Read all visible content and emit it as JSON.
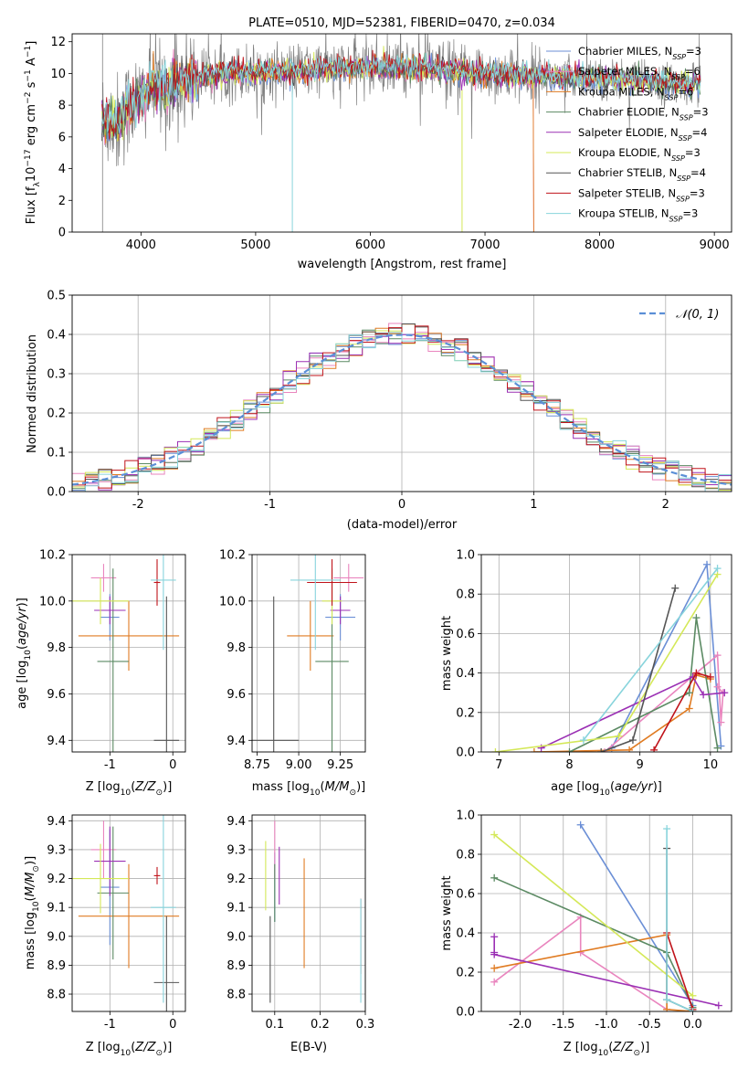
{
  "figure": {
    "title": "PLATE=0510, MJD=52381, FIBERID=0470, z=0.034",
    "colors": {
      "Chabrier MILES": "#6b8fd6",
      "Salpeter MILES": "#e985be",
      "Kroupa MILES": "#e07b22",
      "Chabrier ELODIE": "#5b8a63",
      "Salpeter ELODIE": "#9b30b4",
      "Kroupa ELODIE": "#d4e858",
      "Chabrier STELIB": "#555555",
      "Salpeter STELIB": "#c0131a",
      "Kroupa STELIB": "#88d4dc",
      "gray_spectrum": "#808080"
    }
  },
  "chart_data": [
    {
      "id": "spectrum",
      "type": "line",
      "title": "PLATE=0510, MJD=52381, FIBERID=0470, z=0.034",
      "xlabel": "wavelength [Angstrom, rest frame]",
      "ylabel": "Flux [f_λ10^-17 erg cm^-2 s^-1 A^-1]",
      "xlim": [
        3400,
        9150
      ],
      "ylim": [
        0,
        12.5
      ],
      "xticks": [
        4000,
        5000,
        6000,
        7000,
        8000,
        9000
      ],
      "yticks": [
        0,
        2,
        4,
        6,
        8,
        10,
        12
      ],
      "grid": false,
      "legend_position": "top-right",
      "data_x_range": [
        3660,
        8880
      ],
      "continuum": {
        "x": [
          3660,
          3800,
          3900,
          4000,
          4100,
          4200,
          4400,
          4600,
          4800,
          5000,
          5200,
          5400,
          5600,
          6000,
          6500,
          7000,
          7500,
          8000,
          8500,
          8880
        ],
        "y": [
          7.2,
          6.8,
          8.0,
          8.4,
          9.3,
          9.0,
          9.6,
          9.9,
          10.1,
          10.0,
          10.2,
          10.1,
          10.3,
          10.4,
          10.3,
          10.0,
          9.8,
          9.7,
          9.4,
          9.3
        ]
      },
      "legend": [
        {
          "label": "Chabrier MILES, N_SSP=3",
          "color_key": "Chabrier MILES"
        },
        {
          "label": "Salpeter MILES, N_SSP=6",
          "color_key": "Salpeter MILES"
        },
        {
          "label": "Kroupa MILES, N_SSP=6",
          "color_key": "Kroupa MILES"
        },
        {
          "label": "Chabrier ELODIE, N_SSP=3",
          "color_key": "Chabrier ELODIE"
        },
        {
          "label": "Salpeter ELODIE, N_SSP=4",
          "color_key": "Salpeter ELODIE"
        },
        {
          "label": "Kroupa ELODIE, N_SSP=3",
          "color_key": "Kroupa ELODIE"
        },
        {
          "label": "Chabrier STELIB, N_SSP=4",
          "color_key": "Chabrier STELIB"
        },
        {
          "label": "Salpeter STELIB, N_SSP=3",
          "color_key": "Salpeter STELIB"
        },
        {
          "label": "Kroupa STELIB, N_SSP=3",
          "color_key": "Kroupa STELIB"
        }
      ]
    },
    {
      "id": "residuals",
      "type": "line",
      "xlabel": "(data-model)/error",
      "ylabel": "Normed distribution",
      "xlim": [
        -2.5,
        2.5
      ],
      "ylim": [
        0,
        0.5
      ],
      "xticks": [
        -2,
        -1,
        0,
        1,
        2
      ],
      "yticks": [
        0.0,
        0.1,
        0.2,
        0.3,
        0.4,
        0.5
      ],
      "grid": true,
      "legend_position": "top-right",
      "legend": [
        {
          "label": "𝒩(0, 1)",
          "color": "#5b8fd6",
          "dashed": true
        }
      ],
      "bins": [
        -2.5,
        2.5,
        50
      ],
      "gaussian": {
        "mean": 0,
        "sigma": 1
      }
    },
    {
      "id": "age_Z",
      "type": "scatter",
      "xlabel": "Z [log10(Z/Z☉)]",
      "ylabel": "age  [log10(age/yr)]",
      "xlim": [
        -1.6,
        0.2
      ],
      "ylim": [
        9.35,
        10.2
      ],
      "xticks": [
        -1,
        0
      ],
      "yticks": [
        9.4,
        9.6,
        9.8,
        10.0,
        10.2
      ],
      "grid": true,
      "errorbars": [
        {
          "model": "Chabrier MILES",
          "x": -1.0,
          "xerr": 0.15,
          "y": 9.93,
          "yerr": 0.1
        },
        {
          "model": "Salpeter MILES",
          "x": -1.1,
          "xerr": 0.2,
          "y": 10.1,
          "yerr": 0.06
        },
        {
          "model": "Kroupa MILES",
          "x": -0.7,
          "xerr": 0.8,
          "y": 9.85,
          "yerr": 0.15
        },
        {
          "model": "Chabrier ELODIE",
          "x": -0.95,
          "xerr": 0.25,
          "y": 9.74,
          "yerr": 0.4
        },
        {
          "model": "Salpeter ELODIE",
          "x": -1.0,
          "xerr": 0.25,
          "y": 9.96,
          "yerr": 0.06
        },
        {
          "model": "Kroupa ELODIE",
          "x": -1.15,
          "xerr": 0.45,
          "y": 10.0,
          "yerr": 0.1
        },
        {
          "model": "Chabrier STELIB",
          "x": -0.1,
          "xerr": 0.2,
          "y": 9.4,
          "yerr": 0.62
        },
        {
          "model": "Salpeter STELIB",
          "x": -0.25,
          "xerr": 0.05,
          "y": 10.08,
          "yerr": 0.1
        },
        {
          "model": "Kroupa STELIB",
          "x": -0.15,
          "xerr": 0.2,
          "y": 10.09,
          "yerr": 0.3
        }
      ]
    },
    {
      "id": "age_mass",
      "type": "scatter",
      "xlabel": "mass [log10(M/M☉)]",
      "ylabel": "",
      "xlim": [
        8.72,
        9.4
      ],
      "ylim": [
        9.35,
        10.2
      ],
      "xticks": [
        8.75,
        9.0,
        9.25
      ],
      "yticks": [
        9.4,
        9.6,
        9.8,
        10.0,
        10.2
      ],
      "grid": true,
      "errorbars": [
        {
          "model": "Chabrier MILES",
          "x": 9.25,
          "xerr": 0.09,
          "y": 9.93,
          "yerr": 0.1
        },
        {
          "model": "Salpeter MILES",
          "x": 9.3,
          "xerr": 0.09,
          "y": 10.1,
          "yerr": 0.06
        },
        {
          "model": "Kroupa MILES",
          "x": 9.07,
          "xerr": 0.14,
          "y": 9.85,
          "yerr": 0.15
        },
        {
          "model": "Chabrier ELODIE",
          "x": 9.2,
          "xerr": 0.1,
          "y": 9.74,
          "yerr": 0.4
        },
        {
          "model": "Salpeter ELODIE",
          "x": 9.25,
          "xerr": 0.06,
          "y": 9.96,
          "yerr": 0.06
        },
        {
          "model": "Kroupa ELODIE",
          "x": 9.2,
          "xerr": 0.06,
          "y": 10.0,
          "yerr": 0.1
        },
        {
          "model": "Chabrier STELIB",
          "x": 8.85,
          "xerr": 0.15,
          "y": 9.4,
          "yerr": 0.62
        },
        {
          "model": "Salpeter STELIB",
          "x": 9.2,
          "xerr": 0.15,
          "y": 10.08,
          "yerr": 0.1
        },
        {
          "model": "Kroupa STELIB",
          "x": 9.1,
          "xerr": 0.15,
          "y": 10.09,
          "yerr": 0.3
        }
      ]
    },
    {
      "id": "weight_age",
      "type": "line",
      "xlabel": "age  [log10(age/yr)]",
      "ylabel": "mass weight",
      "xlim": [
        6.75,
        10.3
      ],
      "ylim": [
        0,
        1.0
      ],
      "xticks": [
        7,
        8,
        9,
        10
      ],
      "yticks": [
        0.0,
        0.2,
        0.4,
        0.6,
        0.8,
        1.0
      ],
      "grid": true,
      "series": [
        {
          "model": "Chabrier MILES",
          "x": [
            8.6,
            9.95,
            10.15
          ],
          "y": [
            0.02,
            0.95,
            0.03
          ]
        },
        {
          "model": "Salpeter MILES",
          "x": [
            8.5,
            9.8,
            10.1,
            10.15,
            10.18,
            10.1
          ],
          "y": [
            0.0,
            0.4,
            0.49,
            0.15,
            0.3,
            0.33
          ]
        },
        {
          "model": "Kroupa MILES",
          "x": [
            7.5,
            8.85,
            9.7,
            9.8,
            10.0
          ],
          "y": [
            0.0,
            0.01,
            0.22,
            0.39,
            0.37
          ]
        },
        {
          "model": "Chabrier ELODIE",
          "x": [
            8.0,
            9.7,
            9.8,
            10.1
          ],
          "y": [
            0.0,
            0.3,
            0.68,
            0.02
          ]
        },
        {
          "model": "Salpeter ELODIE",
          "x": [
            7.6,
            9.75,
            9.9,
            10.2
          ],
          "y": [
            0.02,
            0.38,
            0.29,
            0.3
          ]
        },
        {
          "model": "Kroupa ELODIE",
          "x": [
            6.95,
            8.7,
            10.1
          ],
          "y": [
            0.0,
            0.08,
            0.9
          ]
        },
        {
          "model": "Chabrier STELIB",
          "x": [
            8.45,
            8.9,
            9.5
          ],
          "y": [
            0.0,
            0.06,
            0.83
          ]
        },
        {
          "model": "Salpeter STELIB",
          "x": [
            9.2,
            9.8,
            10.0
          ],
          "y": [
            0.01,
            0.4,
            0.38
          ]
        },
        {
          "model": "Kroupa STELIB",
          "x": [
            8.2,
            10.1
          ],
          "y": [
            0.06,
            0.93
          ]
        }
      ]
    },
    {
      "id": "mass_Z",
      "type": "scatter",
      "xlabel": "Z [log10(Z/Z☉)]",
      "ylabel": "mass [log10(M/M☉)]",
      "xlim": [
        -1.6,
        0.2
      ],
      "ylim": [
        8.74,
        9.42
      ],
      "xticks": [
        -1,
        0
      ],
      "yticks": [
        8.8,
        8.9,
        9.0,
        9.1,
        9.2,
        9.3,
        9.4
      ],
      "grid": true,
      "errorbars": [
        {
          "model": "Chabrier MILES",
          "x": -1.0,
          "xerr": 0.15,
          "y": 9.17,
          "yerr": 0.2
        },
        {
          "model": "Salpeter MILES",
          "x": -1.1,
          "xerr": 0.2,
          "y": 9.3,
          "yerr": 0.1
        },
        {
          "model": "Kroupa MILES",
          "x": -0.7,
          "xerr": 0.8,
          "y": 9.07,
          "yerr": 0.18
        },
        {
          "model": "Chabrier ELODIE",
          "x": -0.95,
          "xerr": 0.25,
          "y": 9.15,
          "yerr": 0.23
        },
        {
          "model": "Salpeter ELODIE",
          "x": -1.0,
          "xerr": 0.25,
          "y": 9.26,
          "yerr": 0.12
        },
        {
          "model": "Kroupa ELODIE",
          "x": -1.15,
          "xerr": 0.45,
          "y": 9.2,
          "yerr": 0.12
        },
        {
          "model": "Chabrier STELIB",
          "x": -0.1,
          "xerr": 0.2,
          "y": 8.84,
          "yerr": 0.23
        },
        {
          "model": "Salpeter STELIB",
          "x": -0.25,
          "xerr": 0.05,
          "y": 9.21,
          "yerr": 0.03
        },
        {
          "model": "Kroupa STELIB",
          "x": -0.15,
          "xerr": 0.2,
          "y": 9.1,
          "yerr": 0.33
        }
      ]
    },
    {
      "id": "mass_EBV",
      "type": "scatter",
      "xlabel": "E(B-V)",
      "ylabel": "",
      "xlim": [
        0.05,
        0.3
      ],
      "ylim": [
        8.74,
        9.42
      ],
      "xticks": [
        0.1,
        0.2,
        0.3
      ],
      "yticks": [
        8.8,
        8.9,
        9.0,
        9.1,
        9.2,
        9.3,
        9.4
      ],
      "grid": true,
      "errorbars": [
        {
          "model": "Chabrier MILES",
          "x": 0.1,
          "xerr": 0.0,
          "y": 9.17,
          "yerr": 0.12
        },
        {
          "model": "Salpeter MILES",
          "x": 0.1,
          "xerr": 0.0,
          "y": 9.3,
          "yerr": 0.1
        },
        {
          "model": "Kroupa MILES",
          "x": 0.165,
          "xerr": 0.0,
          "y": 9.08,
          "yerr": 0.19
        },
        {
          "model": "Chabrier ELODIE",
          "x": 0.1,
          "xerr": 0.0,
          "y": 9.15,
          "yerr": 0.1
        },
        {
          "model": "Salpeter ELODIE",
          "x": 0.11,
          "xerr": 0.0,
          "y": 9.21,
          "yerr": 0.1
        },
        {
          "model": "Kroupa ELODIE",
          "x": 0.08,
          "xerr": 0.0,
          "y": 9.21,
          "yerr": 0.12
        },
        {
          "model": "Chabrier STELIB",
          "x": 0.09,
          "xerr": 0.0,
          "y": 8.92,
          "yerr": 0.15
        },
        {
          "model": "Salpeter STELIB",
          "x": 0.29,
          "xerr": 0.0,
          "y": 9.0,
          "yerr": 0.13
        },
        {
          "model": "Kroupa STELIB",
          "x": 0.29,
          "xerr": 0.0,
          "y": 8.95,
          "yerr": 0.18
        }
      ]
    },
    {
      "id": "weight_Z",
      "type": "line",
      "xlabel": "Z [log10(Z/Z☉)]",
      "ylabel": "mass weight",
      "xlim": [
        -2.45,
        0.45
      ],
      "ylim": [
        0,
        1.0
      ],
      "xticks": [
        -2.0,
        -1.5,
        -1.0,
        -0.5,
        0.0
      ],
      "yticks": [
        0.0,
        0.2,
        0.4,
        0.6,
        0.8,
        1.0
      ],
      "grid": true,
      "series": [
        {
          "model": "Chabrier MILES",
          "x": [
            -1.3,
            0.0
          ],
          "y": [
            0.95,
            0.03
          ]
        },
        {
          "model": "Salpeter MILES",
          "x": [
            -2.3,
            -1.3,
            -1.3,
            -0.3
          ],
          "y": [
            0.15,
            0.48,
            0.3,
            0.01
          ]
        },
        {
          "model": "Kroupa MILES",
          "x": [
            -2.3,
            -0.3,
            -0.3,
            0.0
          ],
          "y": [
            0.22,
            0.39,
            0.01,
            0.0
          ]
        },
        {
          "model": "Chabrier ELODIE",
          "x": [
            -2.3,
            -0.3,
            0.0
          ],
          "y": [
            0.68,
            0.3,
            0.02
          ]
        },
        {
          "model": "Salpeter ELODIE",
          "x": [
            -2.3,
            -2.3,
            -2.3,
            0.3
          ],
          "y": [
            0.38,
            0.3,
            0.29,
            0.03
          ]
        },
        {
          "model": "Kroupa ELODIE",
          "x": [
            -2.3,
            0.0
          ],
          "y": [
            0.9,
            0.08
          ]
        },
        {
          "model": "Chabrier STELIB",
          "x": [
            -0.3,
            -0.3,
            0.0
          ],
          "y": [
            0.83,
            0.06,
            0.0
          ]
        },
        {
          "model": "Salpeter STELIB",
          "x": [
            -0.3,
            0.0
          ],
          "y": [
            0.4,
            0.01
          ]
        },
        {
          "model": "Kroupa STELIB",
          "x": [
            -0.3,
            -0.3,
            0.0
          ],
          "y": [
            0.93,
            0.06,
            0.0
          ]
        }
      ]
    }
  ]
}
